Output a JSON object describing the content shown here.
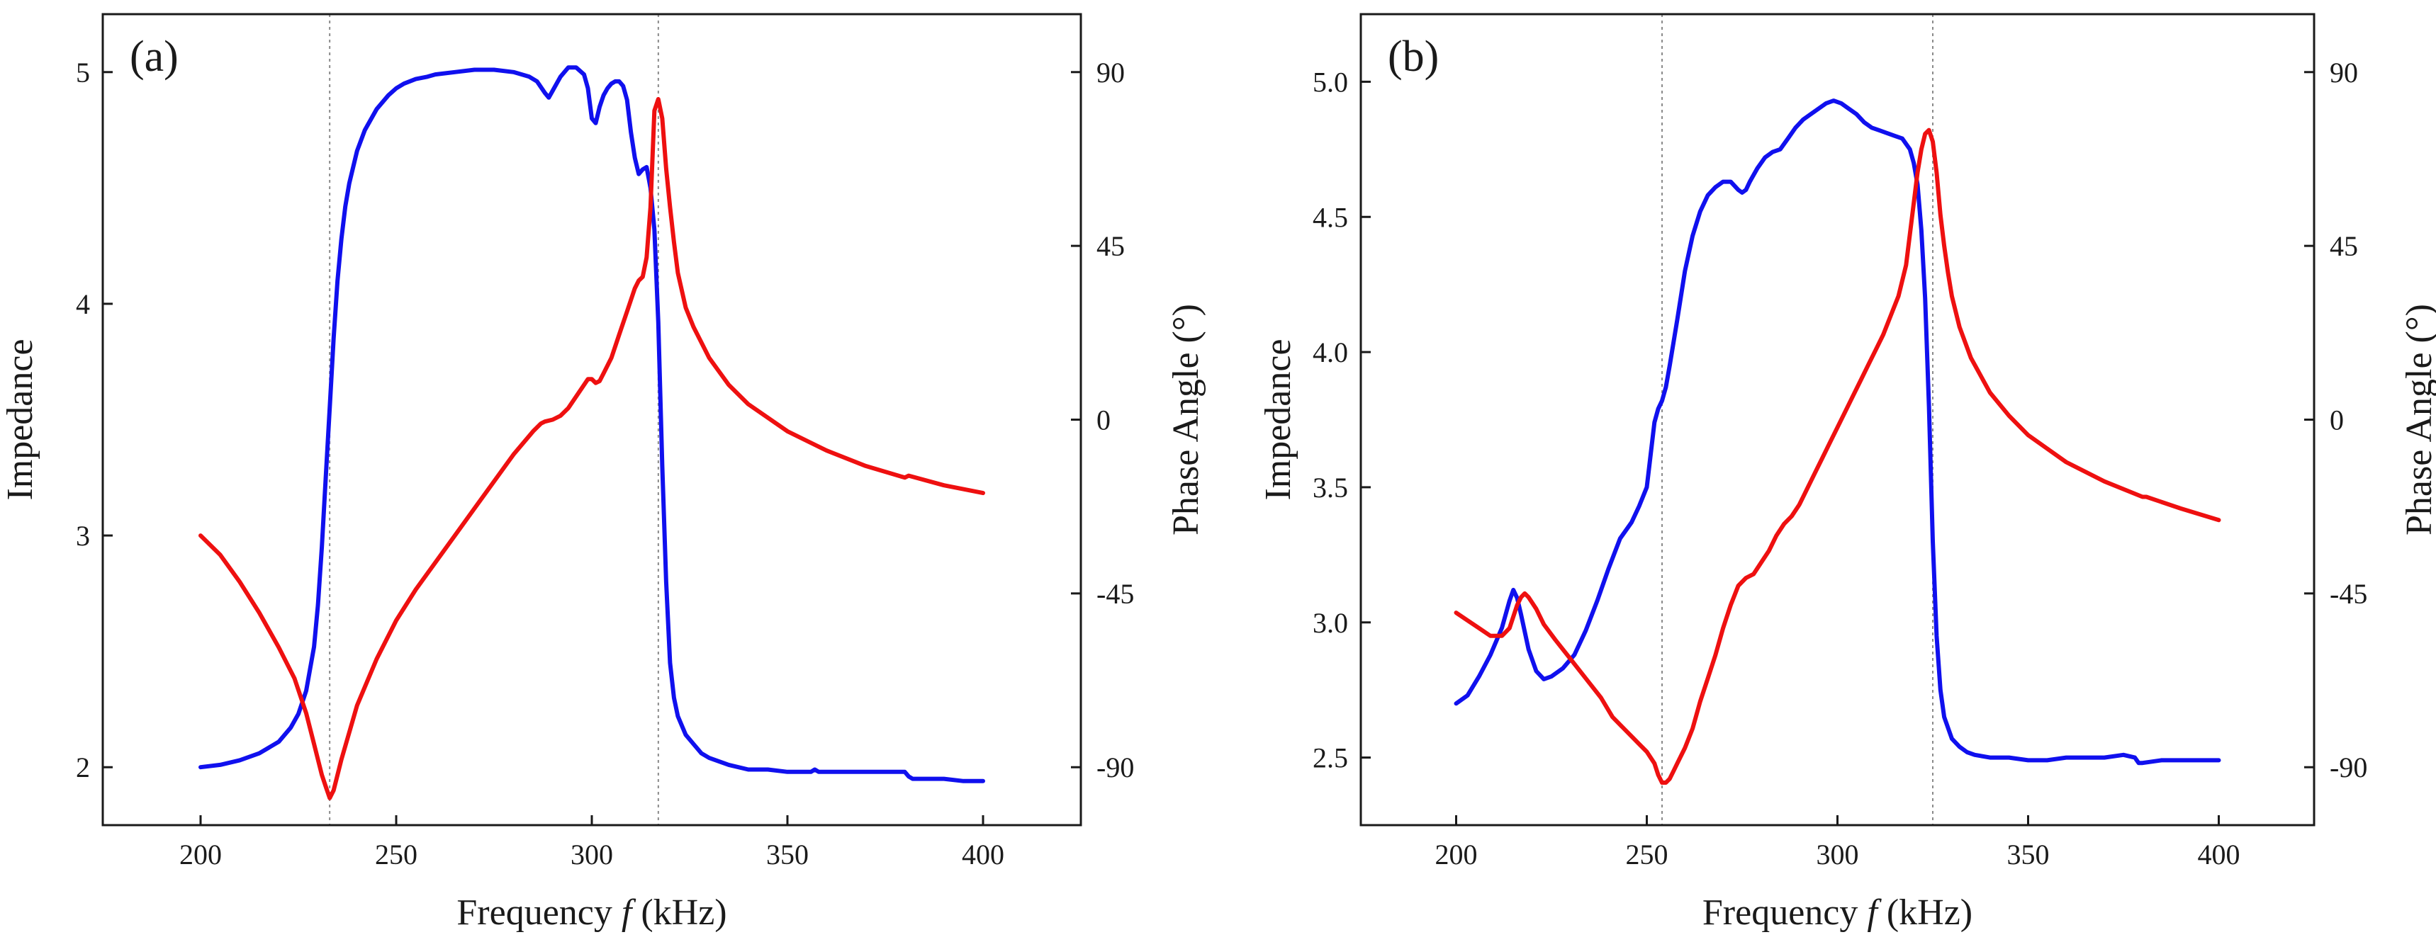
{
  "chart_data": [
    {
      "type": "line",
      "panel_label": "(a)",
      "xlabel_prefix": "Frequency ",
      "xlabel_var": "f",
      "xlabel_suffix": " (kHz)",
      "ylabel_left": "Impedance",
      "ylabel_right": "Phase Angle (°)",
      "xlim": [
        175,
        425
      ],
      "ylim_left": [
        1.75,
        5.25
      ],
      "ylim_right": [
        -105,
        105
      ],
      "x_ticks": [
        200,
        250,
        300,
        350,
        400
      ],
      "x_tick_labels": [
        "200",
        "250",
        "300",
        "350",
        "400"
      ],
      "left_ticks": [
        2,
        3,
        4,
        5
      ],
      "left_tick_labels": [
        "2",
        "3",
        "4",
        "5"
      ],
      "right_ticks": [
        90,
        45,
        0,
        -45,
        -90
      ],
      "right_tick_labels": [
        "90",
        "45",
        "0",
        "-45",
        "-90"
      ],
      "vlines": [
        233,
        317
      ],
      "series": [
        {
          "name": "Impedance",
          "axis": "left",
          "color": "#1010ee",
          "x": [
            200,
            205,
            210,
            215,
            220,
            223,
            225,
            227,
            229,
            230,
            231,
            232,
            233,
            234,
            235,
            236,
            237,
            238,
            240,
            242,
            245,
            248,
            250,
            252,
            255,
            258,
            260,
            265,
            270,
            275,
            280,
            284,
            286,
            288,
            289,
            290,
            292,
            294,
            296,
            298,
            299,
            300,
            301,
            302,
            303,
            304,
            305,
            306,
            307,
            308,
            309,
            310,
            311,
            312,
            313,
            314,
            315,
            316,
            317,
            318,
            319,
            320,
            321,
            322,
            324,
            326,
            328,
            330,
            335,
            340,
            345,
            350,
            356,
            357,
            358,
            360,
            365,
            370,
            375,
            380,
            381,
            382,
            385,
            390,
            395,
            400
          ],
          "y": [
            2.0,
            2.01,
            2.03,
            2.06,
            2.11,
            2.17,
            2.23,
            2.33,
            2.52,
            2.7,
            2.95,
            3.25,
            3.55,
            3.85,
            4.1,
            4.28,
            4.42,
            4.52,
            4.66,
            4.75,
            4.84,
            4.9,
            4.93,
            4.95,
            4.97,
            4.98,
            4.99,
            5.0,
            5.01,
            5.01,
            5.0,
            4.98,
            4.96,
            4.91,
            4.89,
            4.92,
            4.98,
            5.02,
            5.02,
            4.99,
            4.93,
            4.8,
            4.78,
            4.85,
            4.9,
            4.93,
            4.95,
            4.96,
            4.96,
            4.94,
            4.88,
            4.74,
            4.63,
            4.56,
            4.58,
            4.59,
            4.5,
            4.32,
            3.92,
            3.3,
            2.8,
            2.45,
            2.3,
            2.22,
            2.14,
            2.1,
            2.06,
            2.04,
            2.01,
            1.99,
            1.99,
            1.98,
            1.98,
            1.99,
            1.98,
            1.98,
            1.98,
            1.98,
            1.98,
            1.98,
            1.96,
            1.95,
            1.95,
            1.95,
            1.94,
            1.94
          ]
        },
        {
          "name": "Phase Angle",
          "axis": "right",
          "color": "#ee1010",
          "x": [
            200,
            205,
            210,
            215,
            220,
            224,
            227,
            229,
            230,
            231,
            232,
            233,
            234,
            235,
            236,
            238,
            240,
            245,
            250,
            255,
            260,
            265,
            270,
            275,
            280,
            285,
            287,
            288,
            290,
            292,
            294,
            296,
            298,
            299,
            300,
            301,
            302,
            303,
            305,
            307,
            309,
            311,
            312,
            313,
            314,
            315,
            316,
            317,
            318,
            319,
            320,
            321,
            322,
            324,
            326,
            328,
            330,
            335,
            340,
            350,
            360,
            370,
            380,
            381,
            390,
            400
          ],
          "y": [
            -30,
            -35,
            -42,
            -50,
            -59,
            -67,
            -76,
            -84,
            -88,
            -92,
            -95,
            -98,
            -96,
            -92,
            -88,
            -81,
            -74,
            -62,
            -52,
            -44,
            -37,
            -30,
            -23,
            -16,
            -9,
            -3,
            -1,
            -0.5,
            0,
            1,
            3,
            6,
            9,
            10.5,
            10.5,
            9.5,
            10,
            12,
            16,
            22,
            28,
            34,
            36,
            37,
            42,
            55,
            80,
            83,
            78,
            65,
            55,
            46,
            38,
            29,
            24,
            20,
            16,
            9,
            4,
            -3,
            -8,
            -12,
            -15,
            -14.5,
            -17,
            -19
          ]
        }
      ]
    },
    {
      "type": "line",
      "panel_label": "(b)",
      "xlabel_prefix": "Frequency ",
      "xlabel_var": "f",
      "xlabel_suffix": " (kHz)",
      "ylabel_left": "Impedance",
      "ylabel_right": "Phase Angle (°)",
      "xlim": [
        175,
        425
      ],
      "ylim_left": [
        2.25,
        5.25
      ],
      "ylim_right": [
        -105,
        105
      ],
      "x_ticks": [
        200,
        250,
        300,
        350,
        400
      ],
      "x_tick_labels": [
        "200",
        "250",
        "300",
        "350",
        "400"
      ],
      "left_ticks": [
        2.5,
        3.0,
        3.5,
        4.0,
        4.5,
        5.0
      ],
      "left_tick_labels": [
        "2.5",
        "3.0",
        "3.5",
        "4.0",
        "4.5",
        "5.0"
      ],
      "right_ticks": [
        90,
        45,
        0,
        -45,
        -90
      ],
      "right_tick_labels": [
        "90",
        "45",
        "0",
        "-45",
        "-90"
      ],
      "vlines": [
        254,
        325
      ],
      "series": [
        {
          "name": "Impedance",
          "axis": "left",
          "color": "#1010ee",
          "x": [
            200,
            203,
            206,
            209,
            212,
            214,
            215,
            216,
            217,
            219,
            221,
            223,
            225,
            228,
            231,
            234,
            237,
            240,
            243,
            246,
            248,
            250,
            251,
            252,
            253,
            254,
            255,
            256,
            258,
            260,
            262,
            264,
            266,
            268,
            270,
            272,
            274,
            275,
            276,
            277,
            279,
            281,
            283,
            285,
            287,
            289,
            291,
            293,
            295,
            297,
            299,
            301,
            303,
            305,
            307,
            309,
            311,
            313,
            315,
            317,
            319,
            320,
            321,
            322,
            323,
            324,
            325,
            326,
            327,
            328,
            330,
            332,
            334,
            336,
            340,
            345,
            350,
            355,
            360,
            365,
            370,
            375,
            378,
            379,
            380,
            385,
            390,
            395,
            400
          ],
          "y": [
            2.7,
            2.73,
            2.8,
            2.88,
            2.98,
            3.08,
            3.12,
            3.09,
            3.03,
            2.9,
            2.82,
            2.79,
            2.8,
            2.83,
            2.88,
            2.97,
            3.08,
            3.2,
            3.31,
            3.37,
            3.43,
            3.5,
            3.62,
            3.74,
            3.79,
            3.82,
            3.87,
            3.95,
            4.12,
            4.3,
            4.43,
            4.52,
            4.58,
            4.61,
            4.63,
            4.63,
            4.6,
            4.59,
            4.6,
            4.63,
            4.68,
            4.72,
            4.74,
            4.75,
            4.79,
            4.83,
            4.86,
            4.88,
            4.9,
            4.92,
            4.93,
            4.92,
            4.9,
            4.88,
            4.85,
            4.83,
            4.82,
            4.81,
            4.8,
            4.79,
            4.75,
            4.7,
            4.62,
            4.45,
            4.2,
            3.8,
            3.3,
            2.95,
            2.75,
            2.65,
            2.57,
            2.54,
            2.52,
            2.51,
            2.5,
            2.5,
            2.49,
            2.49,
            2.5,
            2.5,
            2.5,
            2.51,
            2.5,
            2.48,
            2.48,
            2.49,
            2.49,
            2.49,
            2.49
          ]
        },
        {
          "name": "Phase Angle",
          "axis": "right",
          "color": "#ee1010",
          "x": [
            200,
            203,
            206,
            209,
            212,
            214,
            215,
            216,
            217,
            218,
            219,
            221,
            223,
            226,
            230,
            234,
            238,
            241,
            244,
            246,
            248,
            250,
            252,
            253,
            254,
            255,
            256,
            257,
            258,
            260,
            262,
            264,
            266,
            268,
            270,
            272,
            274,
            276,
            278,
            280,
            282,
            284,
            286,
            288,
            290,
            292,
            294,
            296,
            298,
            300,
            302,
            304,
            306,
            308,
            310,
            312,
            314,
            316,
            318,
            319,
            320,
            321,
            322,
            323,
            324,
            325,
            326,
            327,
            328,
            329,
            330,
            332,
            335,
            340,
            345,
            350,
            360,
            370,
            380,
            381,
            390,
            400
          ],
          "y": [
            -50,
            -52,
            -54,
            -56,
            -56,
            -54,
            -51,
            -48,
            -46,
            -45,
            -46,
            -49,
            -53,
            -57,
            -62,
            -67,
            -72,
            -77,
            -80,
            -82,
            -84,
            -86,
            -89,
            -92,
            -94,
            -94,
            -93,
            -91,
            -89,
            -85,
            -80,
            -73,
            -67,
            -61,
            -54,
            -48,
            -43,
            -41,
            -40,
            -37,
            -34,
            -30,
            -27,
            -25,
            -22,
            -18,
            -14,
            -10,
            -6,
            -2,
            2,
            6,
            10,
            14,
            18,
            22,
            27,
            32,
            40,
            48,
            56,
            64,
            70,
            74,
            75,
            72,
            64,
            53,
            45,
            38,
            32,
            24,
            16,
            7,
            1,
            -4,
            -11,
            -16,
            -20,
            -20,
            -23,
            -26
          ]
        }
      ]
    }
  ]
}
